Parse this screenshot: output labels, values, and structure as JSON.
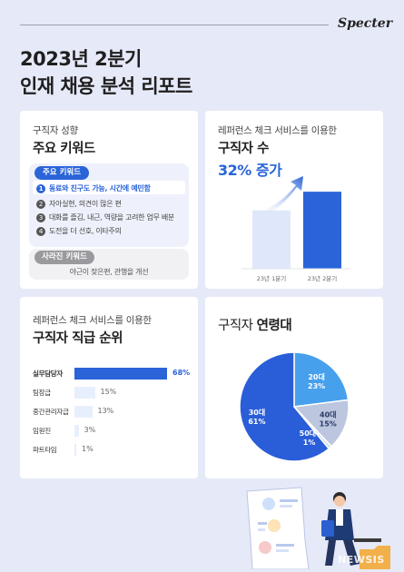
{
  "brand": "Specter",
  "title": {
    "line1": "2023년 2분기",
    "line2": "인재 채용 분석 리포트"
  },
  "keywords_card": {
    "subtitle": "구직자 성향",
    "heading": "주요 키워드",
    "main_label": "주요 키워드",
    "items": [
      {
        "num": "1",
        "text": "동료와 친구도 가능, 시간에 예민함"
      },
      {
        "num": "2",
        "text": "자아실현, 의견이 많은 편"
      },
      {
        "num": "3",
        "text": "대화를 즐김, 내근, 역량을 고려한 업무 배분"
      },
      {
        "num": "4",
        "text": "도전을 더 선호, 이타주의"
      }
    ],
    "gone_label": "사라진 키워드",
    "gone_text": "야근이 잦은편, 관행을 개선"
  },
  "growth_card": {
    "subtitle": "레퍼런스 체크 서비스를 이용한",
    "heading_a": "구직자 수",
    "heading_b": "32% 증가",
    "colors": {
      "bar_light": "#dfe7fb",
      "bar_dark": "#2a64d8"
    }
  },
  "rank_card": {
    "subtitle": "레퍼런스 체크 서비스를 이용한",
    "heading": "구직자 직급 순위"
  },
  "age_card": {
    "heading_a": "구직자 ",
    "heading_b": "연령대"
  },
  "watermark": "NEWSIS",
  "chart_data": [
    {
      "type": "bar",
      "categories": [
        "23년 1분기",
        "23년 2분기"
      ],
      "values": [
        100,
        132
      ],
      "ylim": [
        0,
        140
      ],
      "xlabel": "",
      "ylabel": "",
      "title": "",
      "grid": false,
      "colors": [
        "#dfe7fb",
        "#2a64d8"
      ],
      "annotation": "arrow-up"
    },
    {
      "type": "bar",
      "orientation": "horizontal",
      "categories": [
        "실무담당자",
        "팀장급",
        "중간관리자급",
        "임원진",
        "파트타임"
      ],
      "values": [
        68,
        15,
        13,
        3,
        1
      ],
      "labels": [
        "68%",
        "15%",
        "13%",
        "3%",
        "1%"
      ],
      "xlim": [
        0,
        68
      ],
      "title": "",
      "xlabel": "",
      "ylabel": "",
      "grid": false,
      "colors": {
        "top": "#2a64d8",
        "rest": "#e8effc"
      }
    },
    {
      "type": "pie",
      "slices": [
        {
          "label": "20대",
          "value": 23,
          "pct": "23%",
          "color": "#47a0ec"
        },
        {
          "label": "40대",
          "value": 15,
          "pct": "15%",
          "color": "#bcc6df"
        },
        {
          "label": "50대-",
          "value": 1,
          "pct": "1%",
          "color": "#d7deef"
        },
        {
          "label": "30대",
          "value": 61,
          "pct": "61%",
          "color": "#2a5dd8"
        }
      ],
      "title": "",
      "legend": "none"
    }
  ]
}
